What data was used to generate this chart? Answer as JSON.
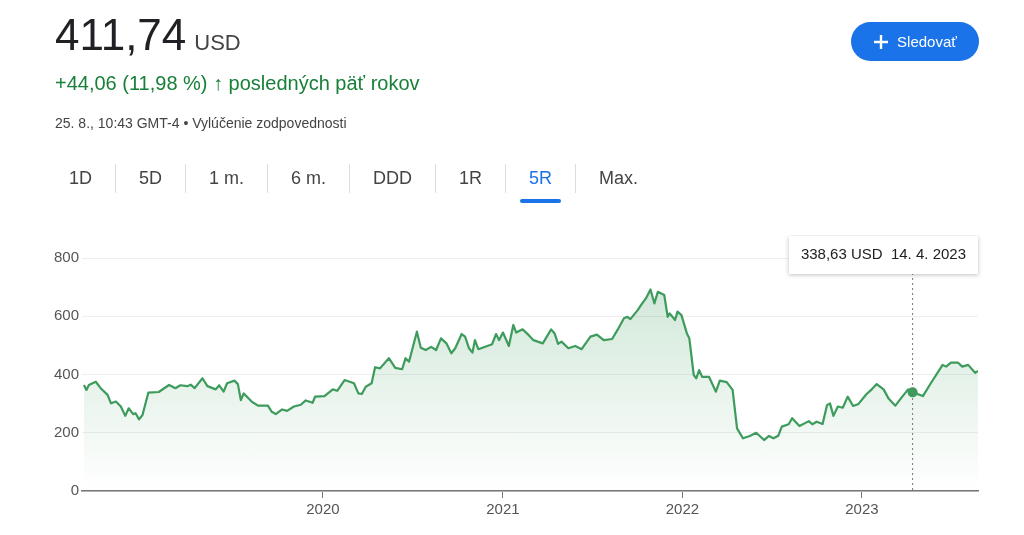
{
  "chart_data": {
    "type": "area",
    "title": "411,74 USD",
    "subtitle": "+44,06 (11,98 %) ↑ posledných päť rokov",
    "annotations": [
      "25. 8., 10:43 GMT-4 • Vylúčenie zodpovednosti",
      "1D",
      "5D",
      "1 m.",
      "6 m.",
      "DDD",
      "1R",
      "5R",
      "Max.",
      "Sledovať",
      "338,63 USD  14. 4. 2023"
    ],
    "ref_lines": [
      {
        "axis": "x",
        "value": "2023-04-14",
        "line_style": "dotted",
        "color": "#777777"
      }
    ],
    "xlim": [
      "2018-08-29",
      "2023-08-25"
    ],
    "xticks": [
      {
        "value": "2020-01-01",
        "label": "2020"
      },
      {
        "value": "2021-01-01",
        "label": "2021"
      },
      {
        "value": "2022-01-01",
        "label": "2022"
      },
      {
        "value": "2023-01-01",
        "label": "2023"
      }
    ],
    "ylim": [
      0,
      800
    ],
    "yticks": [
      0,
      200,
      400,
      600,
      800
    ],
    "grid": "y",
    "legend": false,
    "marker": "none",
    "line_style": "solid",
    "x": [
      "2018-09-02",
      "2018-09-07",
      "2018-09-12",
      "2018-09-26",
      "2018-10-06",
      "2018-10-20",
      "2018-10-27",
      "2018-11-06",
      "2018-11-16",
      "2018-11-25",
      "2018-12-02",
      "2018-12-11",
      "2018-12-16",
      "2018-12-23",
      "2018-12-30",
      "2019-01-11",
      "2019-02-01",
      "2019-02-22",
      "2019-03-07",
      "2019-03-17",
      "2019-03-31",
      "2019-04-07",
      "2019-04-15",
      "2019-05-01",
      "2019-05-11",
      "2019-05-28",
      "2019-06-04",
      "2019-06-13",
      "2019-06-20",
      "2019-07-05",
      "2019-07-12",
      "2019-07-18",
      "2019-07-24",
      "2019-08-09",
      "2019-08-22",
      "2019-09-11",
      "2019-09-19",
      "2019-09-27",
      "2019-10-10",
      "2019-10-20",
      "2019-11-03",
      "2019-11-17",
      "2019-11-27",
      "2019-12-11",
      "2019-12-16",
      "2020-01-04",
      "2020-01-21",
      "2020-01-30",
      "2020-02-14",
      "2020-03-04",
      "2020-03-13",
      "2020-03-20",
      "2020-03-28",
      "2020-04-09",
      "2020-04-16",
      "2020-04-26",
      "2020-05-14",
      "2020-05-27",
      "2020-06-10",
      "2020-06-17",
      "2020-06-24",
      "2020-07-10",
      "2020-07-18",
      "2020-07-28",
      "2020-08-08",
      "2020-08-18",
      "2020-08-28",
      "2020-09-08",
      "2020-09-18",
      "2020-09-26",
      "2020-10-09",
      "2020-10-16",
      "2020-10-24",
      "2020-10-31",
      "2020-11-05",
      "2020-11-12",
      "2020-12-10",
      "2020-12-18",
      "2020-12-24",
      "2021-01-01",
      "2021-01-13",
      "2021-01-22",
      "2021-01-28",
      "2021-02-10",
      "2021-02-22",
      "2021-03-04",
      "2021-03-23",
      "2021-04-09",
      "2021-04-16",
      "2021-04-23",
      "2021-04-30",
      "2021-05-14",
      "2021-05-28",
      "2021-06-10",
      "2021-06-28",
      "2021-07-11",
      "2021-07-25",
      "2021-08-11",
      "2021-08-22",
      "2021-09-04",
      "2021-09-11",
      "2021-09-17",
      "2021-10-02",
      "2021-10-09",
      "2021-10-19",
      "2021-10-28",
      "2021-11-05",
      "2021-11-12",
      "2021-11-25",
      "2021-12-02",
      "2021-12-06",
      "2021-12-17",
      "2021-12-22",
      "2021-12-30",
      "2022-01-10",
      "2022-01-15",
      "2022-01-24",
      "2022-01-29",
      "2022-02-04",
      "2022-02-10",
      "2022-02-24",
      "2022-03-10",
      "2022-03-18",
      "2022-04-01",
      "2022-04-13",
      "2022-04-22",
      "2022-05-04",
      "2022-05-18",
      "2022-05-31",
      "2022-06-16",
      "2022-06-26",
      "2022-07-05",
      "2022-07-15",
      "2022-07-22",
      "2022-08-05",
      "2022-08-12",
      "2022-08-27",
      "2022-09-15",
      "2022-09-22",
      "2022-10-01",
      "2022-10-13",
      "2022-10-22",
      "2022-10-28",
      "2022-11-04",
      "2022-11-13",
      "2022-11-23",
      "2022-12-03",
      "2022-12-14",
      "2022-12-25",
      "2023-01-10",
      "2023-01-21",
      "2023-01-31",
      "2023-02-14",
      "2023-02-24",
      "2023-03-10",
      "2023-03-24",
      "2023-04-05",
      "2023-04-14",
      "2023-05-05",
      "2023-05-21",
      "2023-06-14",
      "2023-06-21",
      "2023-07-01",
      "2023-07-15",
      "2023-07-24",
      "2023-08-05",
      "2023-08-19",
      "2023-08-25"
    ],
    "series": [
      {
        "type": "scatter",
        "marker": "circle",
        "color": "#3d9b5c",
        "x": [
          "2023-04-14"
        ],
        "values": [
          338.63
        ]
      },
      {
        "color": "#3d9b5c",
        "values": [
          364,
          347,
          364,
          375,
          353,
          330,
          301,
          307,
          290,
          258,
          284,
          264,
          267,
          246,
          261,
          338,
          340,
          364,
          353,
          363,
          360,
          365,
          353,
          387,
          360,
          349,
          363,
          341,
          370,
          379,
          367,
          312,
          335,
          307,
          293,
          293,
          272,
          264,
          280,
          275,
          290,
          296,
          311,
          303,
          324,
          326,
          349,
          344,
          381,
          370,
          335,
          333,
          358,
          370,
          425,
          421,
          456,
          423,
          418,
          456,
          444,
          547,
          492,
          484,
          495,
          484,
          524,
          507,
          473,
          490,
          539,
          530,
          490,
          475,
          518,
          487,
          504,
          539,
          518,
          544,
          498,
          570,
          544,
          555,
          536,
          518,
          507,
          555,
          541,
          505,
          513,
          490,
          498,
          487,
          530,
          537,
          518,
          522,
          553,
          593,
          598,
          590,
          621,
          639,
          662,
          692,
          644,
          684,
          673,
          598,
          610,
          587,
          616,
          604,
          541,
          524,
          398,
          387,
          415,
          392,
          392,
          341,
          379,
          374,
          347,
          215,
          181,
          189,
          200,
          175,
          189,
          181,
          190,
          221,
          229,
          250,
          223,
          240,
          229,
          238,
          230,
          295,
          301,
          258,
          290,
          286,
          324,
          292,
          299,
          332,
          349,
          367,
          349,
          318,
          293,
          324,
          349,
          338.63,
          326,
          370,
          433,
          427,
          441,
          441,
          427,
          433,
          406,
          411.74
        ]
      }
    ]
  }
}
